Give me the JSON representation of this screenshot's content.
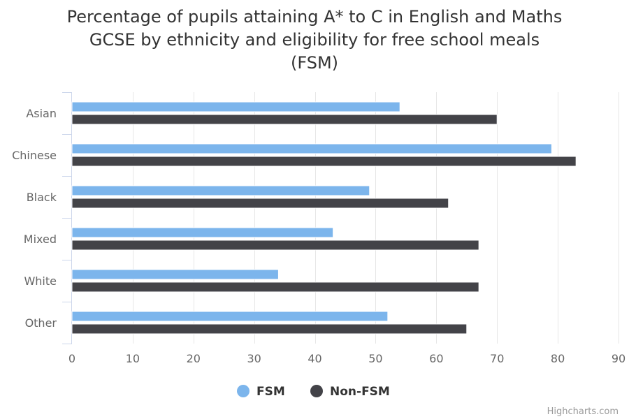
{
  "chart_data": {
    "type": "bar",
    "orientation": "horizontal",
    "title_lines": [
      "Percentage of pupils attaining A* to C in English and Maths",
      "GCSE by ethnicity and eligibility for free school meals",
      "(FSM)"
    ],
    "categories": [
      "Asian",
      "Chinese",
      "Black",
      "Mixed",
      "White",
      "Other"
    ],
    "series": [
      {
        "name": "FSM",
        "color": "#7cb5ec",
        "values": [
          54,
          79,
          49,
          43,
          34,
          52
        ]
      },
      {
        "name": "Non-FSM",
        "color": "#434348",
        "values": [
          70,
          83,
          62,
          67,
          67,
          65
        ]
      }
    ],
    "xlim": [
      0,
      90
    ],
    "ticks": [
      "0",
      "10",
      "20",
      "30",
      "40",
      "50",
      "60",
      "70",
      "80",
      "90"
    ],
    "grid": true,
    "legend_position": "bottom-center",
    "credits": "Highcharts.com"
  }
}
